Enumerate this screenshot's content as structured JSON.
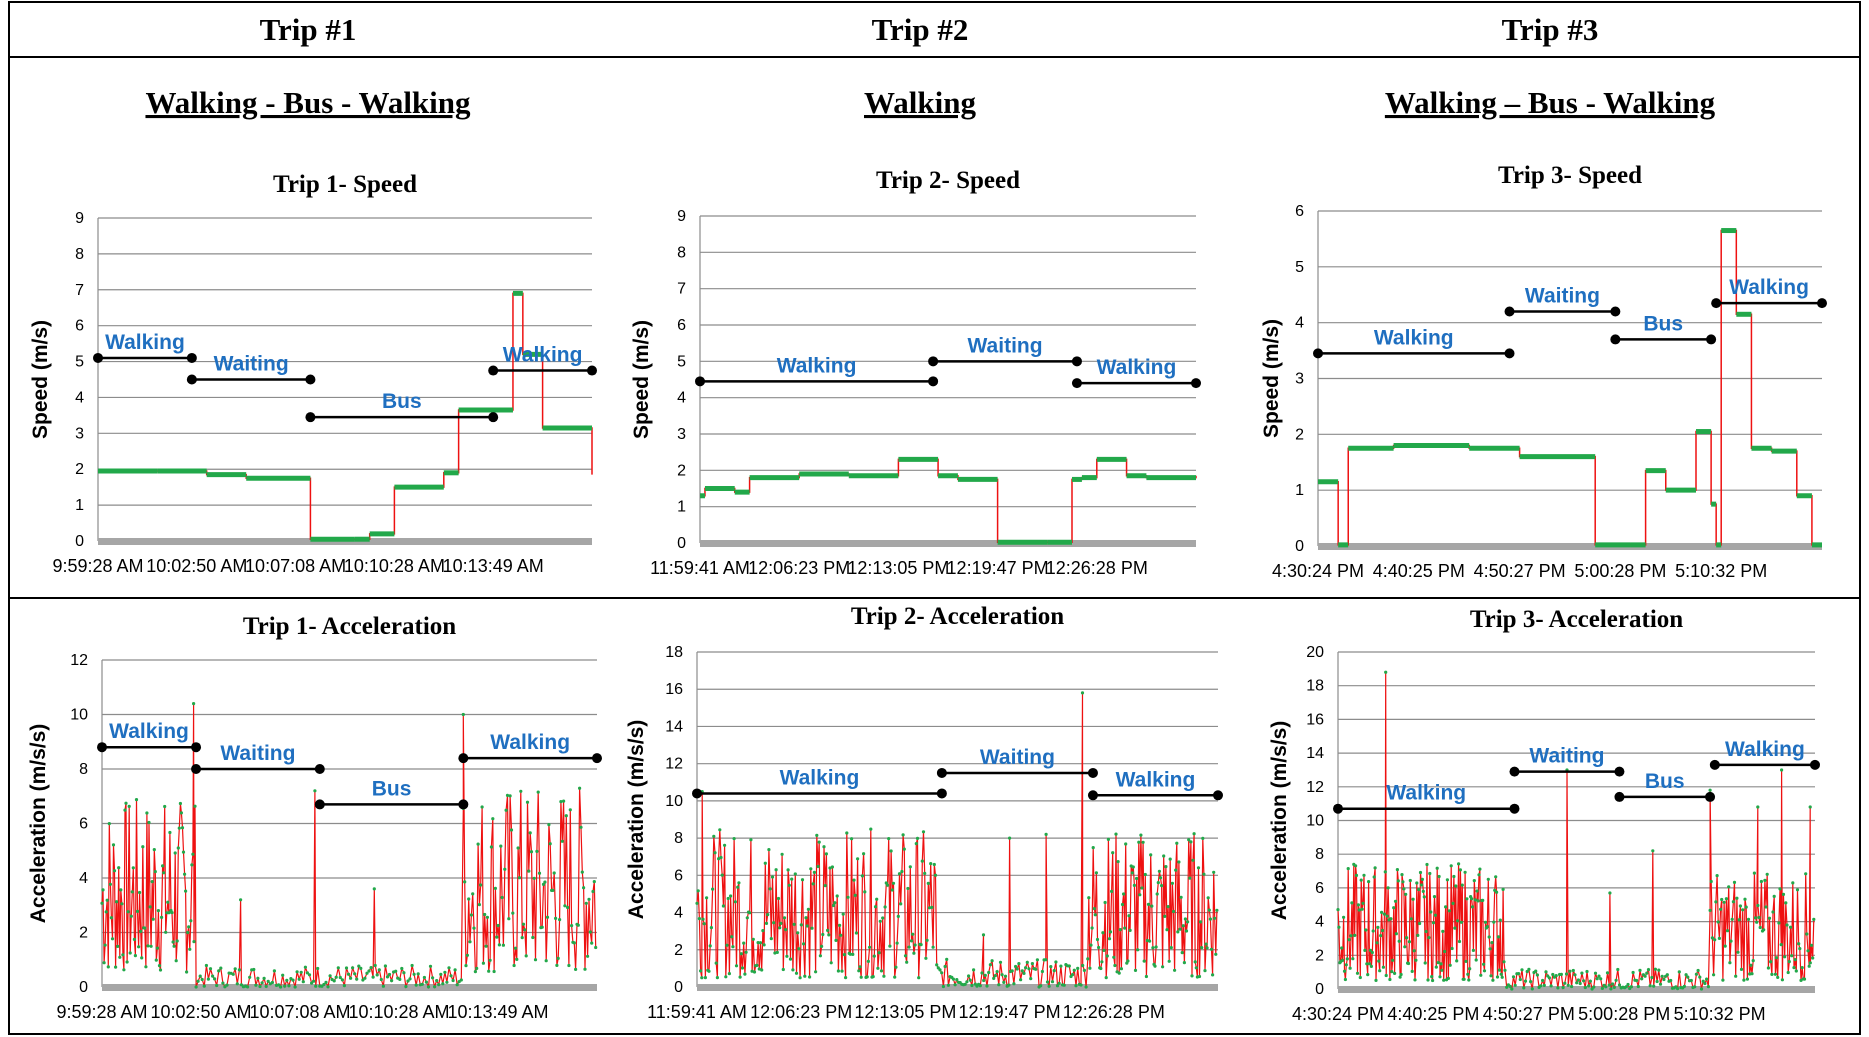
{
  "header": {
    "trips": [
      "Trip #1",
      "Trip #2",
      "Trip #3"
    ],
    "modes": [
      "Walking - Bus - Walking",
      "Walking",
      "Walking – Bus - Walking"
    ]
  },
  "colors": {
    "speed": "#22a84a",
    "accel": "#ee1111",
    "accel_points": "#22a84a",
    "segment": "#000000",
    "label": "#1f6fc0",
    "grid": "#8c8c8c",
    "baseline": "#a6a6a6"
  },
  "chart_data": [
    {
      "type": "line",
      "title": "Trip  1- Speed",
      "ylabel": "Speed (m/s)",
      "xlabel": "",
      "ylim": [
        0,
        9
      ],
      "yticks": [
        0,
        1,
        2,
        3,
        4,
        5,
        6,
        7,
        8,
        9
      ],
      "xtick_labels": [
        "9:59:28 AM",
        "10:02:50 AM",
        "10:07:08 AM",
        "10:10:28 AM",
        "10:13:49 AM"
      ],
      "grid": true,
      "series": [
        {
          "kind": "step",
          "x": [
            0,
            0.12,
            0.22,
            0.3,
            0.43,
            0.52,
            0.55,
            0.6,
            0.7,
            0.73,
            0.84,
            0.86,
            0.9,
            1.0
          ],
          "y": [
            1.95,
            1.95,
            1.85,
            1.75,
            0.05,
            0.05,
            0.2,
            1.5,
            1.9,
            3.65,
            6.9,
            5.2,
            3.15,
            1.85
          ]
        }
      ],
      "segments": [
        {
          "label": "Walking",
          "x0": 0.0,
          "x1": 0.19,
          "y": 5.1
        },
        {
          "label": "Waiting",
          "x0": 0.19,
          "x1": 0.43,
          "y": 4.5
        },
        {
          "label": "Bus",
          "x0": 0.43,
          "x1": 0.8,
          "y": 3.45
        },
        {
          "label": "Walking",
          "x0": 0.8,
          "x1": 1.0,
          "y": 4.75
        }
      ]
    },
    {
      "type": "line",
      "title": "Trip  2- Speed",
      "ylabel": "Speed (m/s)",
      "xlabel": "",
      "ylim": [
        0,
        9
      ],
      "yticks": [
        0,
        1,
        2,
        3,
        4,
        5,
        6,
        7,
        8,
        9
      ],
      "xtick_labels": [
        "11:59:41 AM",
        "12:06:23 PM",
        "12:13:05 PM",
        "12:19:47 PM",
        "12:26:28 PM"
      ],
      "grid": true,
      "series": [
        {
          "kind": "step",
          "x": [
            0,
            0.01,
            0.07,
            0.1,
            0.2,
            0.3,
            0.4,
            0.48,
            0.52,
            0.6,
            0.7,
            0.75,
            0.77,
            0.8,
            0.86,
            0.9,
            1.0
          ],
          "y": [
            1.3,
            1.5,
            1.4,
            1.8,
            1.9,
            1.85,
            2.3,
            1.85,
            1.75,
            0.02,
            0.02,
            1.75,
            1.8,
            2.3,
            1.85,
            1.8,
            1.85
          ]
        }
      ],
      "segments": [
        {
          "label": "Walking",
          "x0": 0.0,
          "x1": 0.47,
          "y": 4.45
        },
        {
          "label": "Waiting",
          "x0": 0.47,
          "x1": 0.76,
          "y": 5.0
        },
        {
          "label": "Walking",
          "x0": 0.76,
          "x1": 1.0,
          "y": 4.4
        }
      ]
    },
    {
      "type": "line",
      "title": "Trip  3- Speed",
      "ylabel": "Speed (m/s)",
      "xlabel": "",
      "ylim": [
        0,
        6
      ],
      "yticks": [
        0,
        1,
        2,
        3,
        4,
        5,
        6
      ],
      "xtick_labels": [
        "4:30:24 PM",
        "4:40:25 PM",
        "4:50:27 PM",
        "5:00:28 PM",
        "5:10:32 PM"
      ],
      "grid": true,
      "series": [
        {
          "kind": "step",
          "x": [
            0,
            0.04,
            0.06,
            0.15,
            0.3,
            0.4,
            0.55,
            0.62,
            0.65,
            0.69,
            0.75,
            0.78,
            0.79,
            0.8,
            0.83,
            0.86,
            0.9,
            0.95,
            0.98,
            1.0
          ],
          "y": [
            1.15,
            0.02,
            1.75,
            1.8,
            1.75,
            1.6,
            0.02,
            0.02,
            1.35,
            1.0,
            2.05,
            0.75,
            0.02,
            5.65,
            4.15,
            1.75,
            1.7,
            0.9,
            0.02,
            0.02
          ]
        }
      ],
      "segments": [
        {
          "label": "Walking",
          "x0": 0.0,
          "x1": 0.38,
          "y": 3.45
        },
        {
          "label": "Waiting",
          "x0": 0.38,
          "x1": 0.59,
          "y": 4.2
        },
        {
          "label": "Bus",
          "x0": 0.59,
          "x1": 0.78,
          "y": 3.7
        },
        {
          "label": "Walking",
          "x0": 0.79,
          "x1": 1.0,
          "y": 4.35
        }
      ]
    },
    {
      "type": "line",
      "title": "Trip  1- Acceleration",
      "ylabel": "Acceleration (m/s/s)",
      "xlabel": "",
      "ylim": [
        0,
        12
      ],
      "yticks": [
        0,
        2,
        4,
        6,
        8,
        10,
        12
      ],
      "xtick_labels": [
        "9:59:28 AM",
        "10:02:50 AM",
        "10:07:08 AM",
        "10:10:28 AM",
        "10:13:49 AM"
      ],
      "grid": true,
      "series": [
        {
          "kind": "noise",
          "regions": [
            {
              "x0": 0.0,
              "x1": 0.19,
              "lo": 0.5,
              "hi": 7.0,
              "n": 90
            },
            {
              "x0": 0.19,
              "x1": 0.44,
              "lo": 0.0,
              "hi": 0.8,
              "n": 60
            },
            {
              "x0": 0.44,
              "x1": 0.73,
              "lo": 0.0,
              "hi": 0.8,
              "n": 70
            },
            {
              "x0": 0.73,
              "x1": 1.0,
              "lo": 0.5,
              "hi": 7.5,
              "n": 100
            }
          ],
          "spikes": [
            {
              "x": 0.185,
              "y": 10.4
            },
            {
              "x": 0.43,
              "y": 7.2
            },
            {
              "x": 0.73,
              "y": 10.0
            },
            {
              "x": 0.55,
              "y": 3.6
            },
            {
              "x": 0.28,
              "y": 3.2
            }
          ]
        }
      ],
      "segments": [
        {
          "label": "Walking",
          "x0": 0.0,
          "x1": 0.19,
          "y": 8.8
        },
        {
          "label": "Waiting",
          "x0": 0.19,
          "x1": 0.44,
          "y": 8.0
        },
        {
          "label": "Bus",
          "x0": 0.44,
          "x1": 0.73,
          "y": 6.7
        },
        {
          "label": "Walking",
          "x0": 0.73,
          "x1": 1.0,
          "y": 8.4
        }
      ]
    },
    {
      "type": "line",
      "title": "Trip  2- Acceleration",
      "ylabel": "Acceleration (m/s/s)",
      "xlabel": "",
      "ylim": [
        0,
        18
      ],
      "yticks": [
        0,
        2,
        4,
        6,
        8,
        10,
        12,
        14,
        16,
        18
      ],
      "xtick_labels": [
        "11:59:41 AM",
        "12:06:23 PM",
        "12:13:05 PM",
        "12:19:47 PM",
        "12:26:28 PM"
      ],
      "grid": true,
      "series": [
        {
          "kind": "noise",
          "regions": [
            {
              "x0": 0.0,
              "x1": 0.46,
              "lo": 0.5,
              "hi": 8.5,
              "n": 200
            },
            {
              "x0": 0.46,
              "x1": 0.75,
              "lo": 0.0,
              "hi": 1.5,
              "n": 90
            },
            {
              "x0": 0.75,
              "x1": 1.0,
              "lo": 0.5,
              "hi": 8.5,
              "n": 120
            }
          ],
          "spikes": [
            {
              "x": 0.01,
              "y": 10.5
            },
            {
              "x": 0.74,
              "y": 15.8
            },
            {
              "x": 0.6,
              "y": 8.0
            },
            {
              "x": 0.67,
              "y": 8.2
            },
            {
              "x": 0.55,
              "y": 2.8
            }
          ]
        }
      ],
      "segments": [
        {
          "label": "Walking",
          "x0": 0.0,
          "x1": 0.47,
          "y": 10.4
        },
        {
          "label": "Waiting",
          "x0": 0.47,
          "x1": 0.76,
          "y": 11.5
        },
        {
          "label": "Walking",
          "x0": 0.76,
          "x1": 1.0,
          "y": 10.3
        }
      ]
    },
    {
      "type": "line",
      "title": "Trip  3- Acceleration",
      "ylabel": "Acceleration (m/s/s)",
      "xlabel": "",
      "ylim": [
        0,
        20
      ],
      "yticks": [
        0,
        2,
        4,
        6,
        8,
        10,
        12,
        14,
        16,
        18,
        20
      ],
      "xtick_labels": [
        "4:30:24 PM",
        "4:40:25 PM",
        "4:50:27 PM",
        "5:00:28 PM",
        "5:10:32 PM"
      ],
      "grid": true,
      "series": [
        {
          "kind": "noise",
          "regions": [
            {
              "x0": 0.0,
              "x1": 0.35,
              "lo": 0.5,
              "hi": 7.5,
              "n": 180
            },
            {
              "x0": 0.35,
              "x1": 0.78,
              "lo": 0.0,
              "hi": 1.2,
              "n": 120
            },
            {
              "x0": 0.78,
              "x1": 1.0,
              "lo": 0.5,
              "hi": 7.0,
              "n": 90
            }
          ],
          "spikes": [
            {
              "x": 0.1,
              "y": 18.8
            },
            {
              "x": 0.48,
              "y": 13.0
            },
            {
              "x": 0.57,
              "y": 5.7
            },
            {
              "x": 0.66,
              "y": 8.2
            },
            {
              "x": 0.78,
              "y": 11.8
            },
            {
              "x": 0.88,
              "y": 10.8
            },
            {
              "x": 0.93,
              "y": 13.0
            },
            {
              "x": 0.99,
              "y": 10.8
            }
          ]
        }
      ],
      "segments": [
        {
          "label": "Walking",
          "x0": 0.0,
          "x1": 0.37,
          "y": 10.7
        },
        {
          "label": "Waiting",
          "x0": 0.37,
          "x1": 0.59,
          "y": 12.9
        },
        {
          "label": "Bus",
          "x0": 0.59,
          "x1": 0.78,
          "y": 11.4
        },
        {
          "label": "Walking",
          "x0": 0.79,
          "x1": 1.0,
          "y": 13.3
        }
      ]
    }
  ]
}
